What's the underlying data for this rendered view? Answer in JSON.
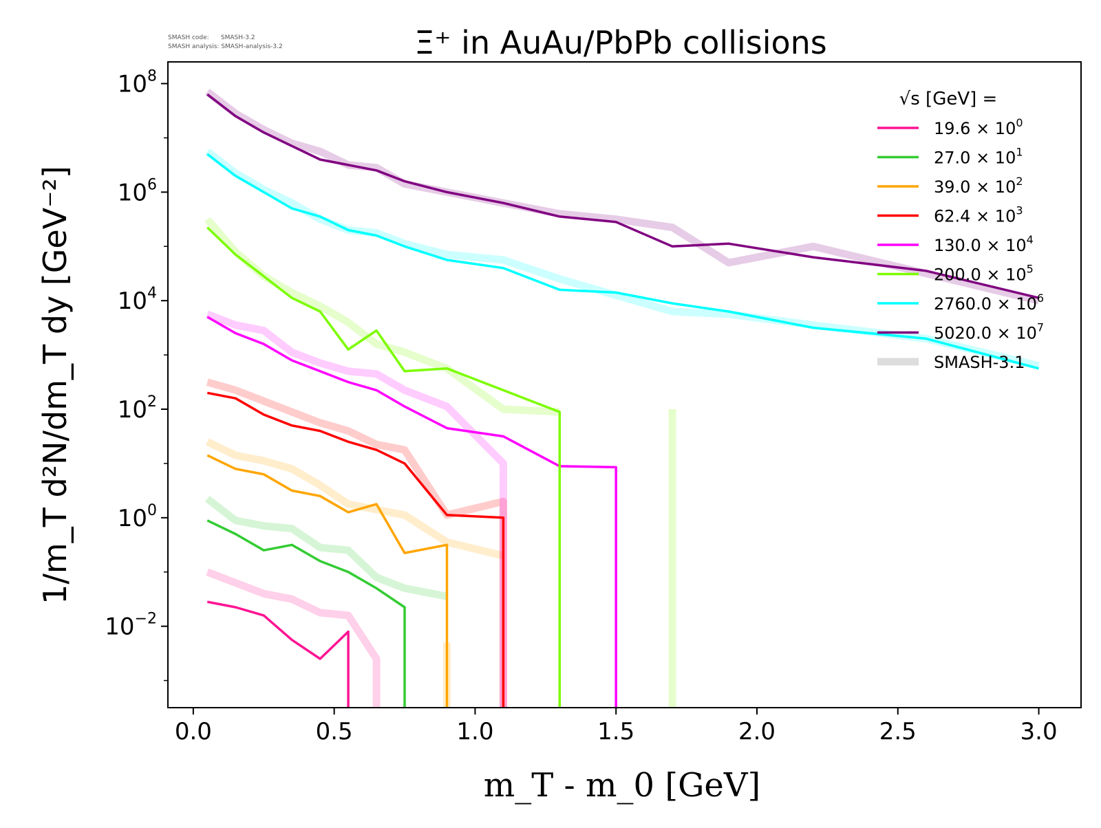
{
  "version_info": {
    "code_label": "SMASH code:",
    "code_value": "SMASH-3.2",
    "analysis_label": "SMASH analysis:",
    "analysis_value": "SMASH-analysis-3.2"
  },
  "chart_data": {
    "type": "line",
    "title": "Ξ⁺ in AuAu/PbPb collisions",
    "xlabel": "m_T - m_0 [GeV]",
    "ylabel": "1/m_T d²N/dm_T dy [GeV⁻²]",
    "xlim": [
      -0.09,
      3.15
    ],
    "ylim_log10": [
      -3.5,
      8.4
    ],
    "y_scale": "log",
    "x_ticks": [
      0.0,
      0.5,
      1.0,
      1.5,
      2.0,
      2.5,
      3.0
    ],
    "x_tick_labels": [
      "0.0",
      "0.5",
      "1.0",
      "1.5",
      "2.0",
      "2.5",
      "3.0"
    ],
    "y_tick_exponents": [
      -2,
      0,
      2,
      4,
      6,
      8
    ],
    "legend": {
      "title": "√s [GeV] =",
      "position": "top-right",
      "entries": [
        {
          "label_base": "19.6",
          "label_exp": "0",
          "color": "#ff1493"
        },
        {
          "label_base": "27.0",
          "label_exp": "1",
          "color": "#33cc33"
        },
        {
          "label_base": "39.0",
          "label_exp": "2",
          "color": "#ffa500"
        },
        {
          "label_base": "62.4",
          "label_exp": "3",
          "color": "#ff0000"
        },
        {
          "label_base": "130.0",
          "label_exp": "4",
          "color": "#ff00ff"
        },
        {
          "label_base": "200.0",
          "label_exp": "5",
          "color": "#7cfc00"
        },
        {
          "label_base": "2760.0",
          "label_exp": "6",
          "color": "#00ffff"
        },
        {
          "label_base": "5020.0",
          "label_exp": "7",
          "color": "#800080"
        }
      ],
      "reference_label": "SMASH-3.1",
      "reference_color": "#dddddd"
    },
    "series": [
      {
        "energy": "19.6",
        "color": "#ff1493",
        "x": [
          0.05,
          0.15,
          0.25,
          0.35,
          0.45,
          0.55,
          0.55
        ],
        "log10_y": [
          -1.55,
          -1.65,
          -1.8,
          -2.25,
          -2.6,
          -2.1,
          -3.5
        ],
        "ref_x": [
          0.05,
          0.15,
          0.25,
          0.35,
          0.45,
          0.55,
          0.65,
          0.65
        ],
        "ref_log10_y": [
          -1.0,
          -1.2,
          -1.4,
          -1.5,
          -1.75,
          -1.8,
          -2.6,
          -3.5
        ]
      },
      {
        "energy": "27.0",
        "color": "#33cc33",
        "x": [
          0.05,
          0.15,
          0.25,
          0.35,
          0.45,
          0.55,
          0.65,
          0.75,
          0.75
        ],
        "log10_y": [
          -0.05,
          -0.3,
          -0.6,
          -0.5,
          -0.8,
          -1.0,
          -1.3,
          -1.65,
          -3.5
        ],
        "ref_x": [
          0.05,
          0.15,
          0.25,
          0.35,
          0.45,
          0.55,
          0.65,
          0.75,
          0.9
        ],
        "ref_log10_y": [
          0.35,
          -0.05,
          -0.15,
          -0.2,
          -0.55,
          -0.6,
          -1.1,
          -1.3,
          -1.45
        ]
      },
      {
        "energy": "39.0",
        "color": "#ffa500",
        "x": [
          0.05,
          0.15,
          0.25,
          0.35,
          0.45,
          0.55,
          0.65,
          0.75,
          0.9,
          0.9
        ],
        "log10_y": [
          1.15,
          0.9,
          0.8,
          0.5,
          0.4,
          0.1,
          0.25,
          -0.65,
          -0.5,
          -3.5
        ],
        "ref_x": [
          0.05,
          0.15,
          0.25,
          0.35,
          0.45,
          0.55,
          0.65,
          0.75,
          0.9,
          1.1
        ],
        "ref_log10_y": [
          1.4,
          1.15,
          1.05,
          0.9,
          0.6,
          0.25,
          0.15,
          0.05,
          -0.45,
          -0.7
        ],
        "ref_stub": {
          "x": 0.9,
          "log10_y_top": -2.3
        }
      },
      {
        "energy": "62.4",
        "color": "#ff0000",
        "x": [
          0.05,
          0.15,
          0.25,
          0.35,
          0.45,
          0.55,
          0.65,
          0.75,
          0.9,
          1.1,
          1.1
        ],
        "log10_y": [
          2.3,
          2.2,
          1.9,
          1.7,
          1.6,
          1.4,
          1.25,
          1.0,
          0.05,
          0.0,
          -3.5
        ],
        "ref_x": [
          0.05,
          0.15,
          0.25,
          0.35,
          0.45,
          0.55,
          0.65,
          0.75,
          0.9,
          1.1,
          1.1
        ],
        "ref_log10_y": [
          2.5,
          2.35,
          2.15,
          1.95,
          1.75,
          1.6,
          1.35,
          1.25,
          0.05,
          0.3,
          -3.5
        ]
      },
      {
        "energy": "130.0",
        "color": "#ff00ff",
        "x": [
          0.05,
          0.15,
          0.25,
          0.35,
          0.45,
          0.55,
          0.65,
          0.75,
          0.9,
          1.1,
          1.3,
          1.5,
          1.5
        ],
        "log10_y": [
          3.7,
          3.4,
          3.2,
          2.9,
          2.7,
          2.5,
          2.35,
          2.05,
          1.65,
          1.5,
          0.95,
          0.93,
          -3.5
        ],
        "ref_x": [
          0.05,
          0.15,
          0.25,
          0.35,
          0.45,
          0.55,
          0.65,
          0.75,
          0.9,
          1.1,
          1.1
        ],
        "ref_log10_y": [
          3.75,
          3.55,
          3.45,
          3.05,
          2.85,
          2.7,
          2.65,
          2.35,
          2.05,
          1.0,
          -3.5
        ]
      },
      {
        "energy": "200.0",
        "color": "#7cfc00",
        "x": [
          0.05,
          0.15,
          0.25,
          0.35,
          0.45,
          0.55,
          0.65,
          0.75,
          0.9,
          1.1,
          1.3,
          1.3
        ],
        "log10_y": [
          5.35,
          4.85,
          4.45,
          4.05,
          3.8,
          3.1,
          3.45,
          2.7,
          2.75,
          2.35,
          1.95,
          -3.5
        ],
        "ref_x": [
          0.05,
          0.15,
          0.25,
          0.35,
          0.45,
          0.55,
          0.65,
          0.75,
          0.9,
          1.1,
          1.3
        ],
        "ref_log10_y": [
          5.5,
          4.9,
          4.45,
          4.15,
          3.9,
          3.6,
          3.2,
          3.05,
          2.75,
          2.0,
          1.95
        ],
        "ref_stub": {
          "x": 1.7,
          "log10_y_top": 2.0
        }
      },
      {
        "energy": "2760.0",
        "color": "#00ffff",
        "x": [
          0.05,
          0.15,
          0.25,
          0.35,
          0.45,
          0.55,
          0.65,
          0.75,
          0.9,
          1.1,
          1.3,
          1.5,
          1.7,
          1.9,
          2.2,
          2.6,
          3.0
        ],
        "log10_y": [
          6.7,
          6.3,
          6.0,
          5.7,
          5.55,
          5.3,
          5.2,
          5.0,
          4.75,
          4.6,
          4.2,
          4.15,
          3.95,
          3.8,
          3.5,
          3.3,
          2.75
        ],
        "ref_x": [
          0.05,
          0.15,
          0.25,
          0.35,
          0.45,
          0.55,
          0.65,
          0.75,
          0.9,
          1.1,
          1.3,
          1.5,
          1.7,
          1.9,
          2.2,
          2.6,
          3.0
        ],
        "ref_log10_y": [
          6.75,
          6.35,
          6.05,
          5.8,
          5.5,
          5.3,
          5.25,
          5.05,
          4.85,
          4.75,
          4.4,
          4.1,
          3.8,
          3.75,
          3.55,
          3.3,
          2.8
        ]
      },
      {
        "energy": "5020.0",
        "color": "#800080",
        "x": [
          0.05,
          0.15,
          0.25,
          0.35,
          0.45,
          0.55,
          0.65,
          0.75,
          0.9,
          1.1,
          1.3,
          1.5,
          1.7,
          1.9,
          2.2,
          2.6,
          3.0
        ],
        "log10_y": [
          7.8,
          7.4,
          7.1,
          6.85,
          6.6,
          6.5,
          6.4,
          6.2,
          6.0,
          5.8,
          5.55,
          5.45,
          5.0,
          5.05,
          4.8,
          4.55,
          4.05
        ],
        "ref_x": [
          0.05,
          0.15,
          0.25,
          0.35,
          0.45,
          0.55,
          0.65,
          0.75,
          0.9,
          1.1,
          1.3,
          1.5,
          1.7,
          1.9,
          2.2,
          2.6,
          3.0
        ],
        "ref_log10_y": [
          7.85,
          7.45,
          7.15,
          6.9,
          6.75,
          6.5,
          6.45,
          6.15,
          6.0,
          5.8,
          5.6,
          5.5,
          5.35,
          4.7,
          5.0,
          4.5,
          4.0
        ]
      }
    ]
  }
}
